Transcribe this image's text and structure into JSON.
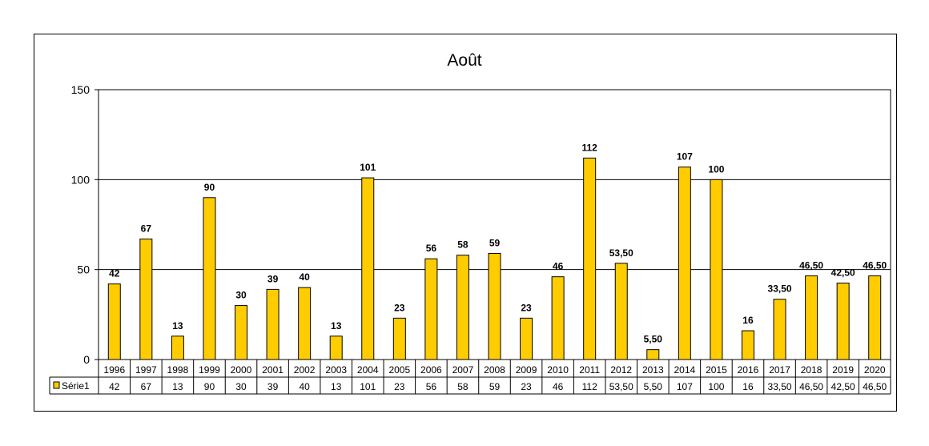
{
  "chart_data": {
    "type": "bar",
    "title": "Août",
    "xlabel": "",
    "ylabel": "",
    "ylim": [
      0,
      150
    ],
    "yticks": [
      "0",
      "50",
      "100",
      "150"
    ],
    "grid": true,
    "color": "#FFCC00",
    "categories": [
      "1996",
      "1997",
      "1998",
      "1999",
      "2000",
      "2001",
      "2002",
      "2003",
      "2004",
      "2005",
      "2006",
      "2007",
      "2008",
      "2009",
      "2010",
      "2011",
      "2012",
      "2013",
      "2014",
      "2015",
      "2016",
      "2017",
      "2018",
      "2019",
      "2020"
    ],
    "series": [
      {
        "name": "Série1",
        "values": [
          42,
          67,
          13,
          90,
          30,
          39,
          40,
          13,
          101,
          23,
          56,
          58,
          59,
          23,
          46,
          112,
          53.5,
          5.5,
          107,
          100,
          16,
          33.5,
          46.5,
          42.5,
          46.5
        ],
        "labels": [
          "42",
          "67",
          "13",
          "90",
          "30",
          "39",
          "40",
          "13",
          "101",
          "23",
          "56",
          "58",
          "59",
          "23",
          "46",
          "112",
          "53,50",
          "5,50",
          "107",
          "100",
          "16",
          "33,50",
          "46,50",
          "42,50",
          "46,50"
        ]
      }
    ],
    "legend": "data-table"
  }
}
